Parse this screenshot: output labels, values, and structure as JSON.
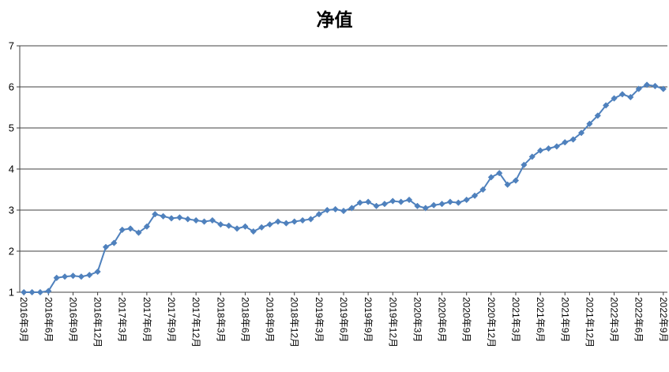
{
  "chart_data": {
    "type": "line",
    "title": "净值",
    "xlabel": "",
    "ylabel": "",
    "ylim": [
      1,
      7
    ],
    "yticks": [
      1,
      2,
      3,
      4,
      5,
      6,
      7
    ],
    "x_tick_interval": 3,
    "grid": "horizontal",
    "legend": "none",
    "line_color": "#4f81bd",
    "marker": "diamond",
    "x": [
      "2016年3月",
      "2016年4月",
      "2016年5月",
      "2016年6月",
      "2016年7月",
      "2016年8月",
      "2016年9月",
      "2016年10月",
      "2016年11月",
      "2016年12月",
      "2017年1月",
      "2017年2月",
      "2017年3月",
      "2017年4月",
      "2017年5月",
      "2017年6月",
      "2017年7月",
      "2017年8月",
      "2017年9月",
      "2017年10月",
      "2017年11月",
      "2017年12月",
      "2018年1月",
      "2018年2月",
      "2018年3月",
      "2018年4月",
      "2018年5月",
      "2018年6月",
      "2018年7月",
      "2018年8月",
      "2018年9月",
      "2018年10月",
      "2018年11月",
      "2018年12月",
      "2019年1月",
      "2019年2月",
      "2019年3月",
      "2019年4月",
      "2019年5月",
      "2019年6月",
      "2019年7月",
      "2019年8月",
      "2019年9月",
      "2019年10月",
      "2019年11月",
      "2019年12月",
      "2020年1月",
      "2020年2月",
      "2020年3月",
      "2020年4月",
      "2020年5月",
      "2020年6月",
      "2020年7月",
      "2020年8月",
      "2020年9月",
      "2020年10月",
      "2020年11月",
      "2020年12月",
      "2021年1月",
      "2021年2月",
      "2021年3月",
      "2021年4月",
      "2021年5月",
      "2021年6月",
      "2021年7月",
      "2021年8月",
      "2021年9月",
      "2021年10月",
      "2021年11月",
      "2021年12月",
      "2022年1月",
      "2022年2月",
      "2022年3月",
      "2022年4月",
      "2022年5月",
      "2022年6月",
      "2022年7月",
      "2022年8月",
      "2022年9月"
    ],
    "series": [
      {
        "name": "净值",
        "values": [
          1.0,
          1.0,
          1.0,
          1.03,
          1.35,
          1.38,
          1.4,
          1.38,
          1.42,
          1.5,
          2.1,
          2.2,
          2.52,
          2.55,
          2.45,
          2.6,
          2.9,
          2.85,
          2.8,
          2.82,
          2.78,
          2.75,
          2.72,
          2.75,
          2.65,
          2.62,
          2.55,
          2.6,
          2.48,
          2.58,
          2.65,
          2.72,
          2.68,
          2.72,
          2.75,
          2.78,
          2.9,
          3.0,
          3.02,
          2.98,
          3.05,
          3.18,
          3.2,
          3.1,
          3.15,
          3.22,
          3.2,
          3.25,
          3.1,
          3.05,
          3.12,
          3.15,
          3.2,
          3.18,
          3.25,
          3.35,
          3.5,
          3.8,
          3.9,
          3.62,
          3.72,
          4.1,
          4.3,
          4.45,
          4.5,
          4.55,
          4.65,
          4.72,
          4.88,
          5.1,
          5.3,
          5.55,
          5.72,
          5.82,
          5.75,
          5.95,
          6.05,
          6.02,
          5.95
        ]
      }
    ]
  }
}
